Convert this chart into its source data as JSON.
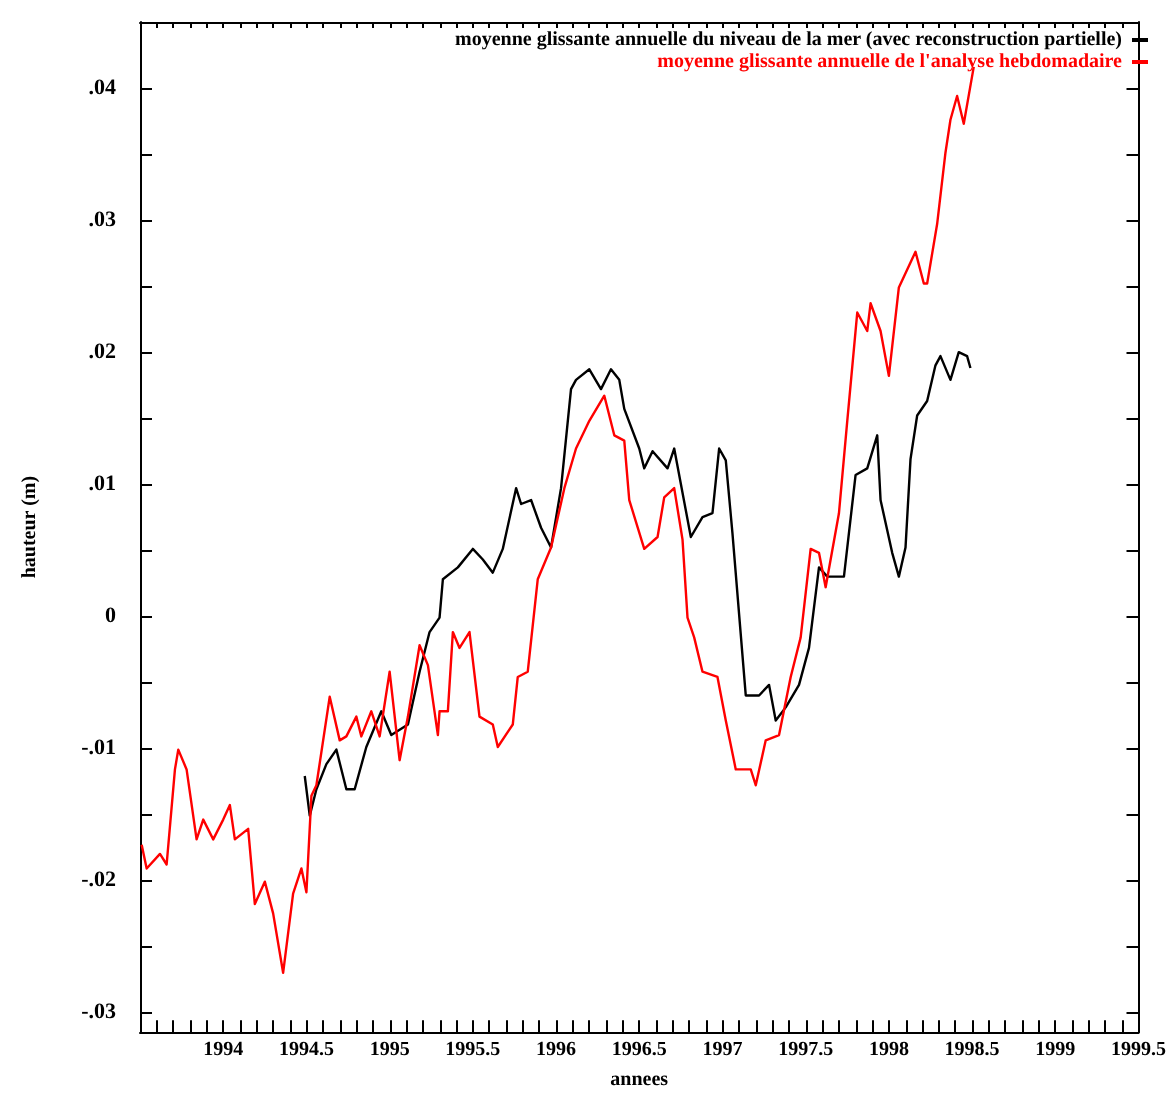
{
  "chart_data": {
    "type": "line",
    "xlabel": "annees",
    "ylabel": "hauteur (m)",
    "legend": "top right",
    "grid": false,
    "marker": "none",
    "line_style": "solid",
    "xlim": [
      1993.5,
      1999.5
    ],
    "ylim": [
      -0.0315,
      0.045
    ],
    "xticks": [
      {
        "value": 1993.6,
        "label": null
      },
      {
        "value": 1993.7,
        "label": null
      },
      {
        "value": 1993.8,
        "label": null
      },
      {
        "value": 1993.9,
        "label": null
      },
      {
        "value": 1994,
        "label": "1994"
      },
      {
        "value": 1994.1,
        "label": null
      },
      {
        "value": 1994.2,
        "label": null
      },
      {
        "value": 1994.3,
        "label": null
      },
      {
        "value": 1994.4,
        "label": null
      },
      {
        "value": 1994.5,
        "label": "1994.5"
      },
      {
        "value": 1994.6,
        "label": null
      },
      {
        "value": 1994.7,
        "label": null
      },
      {
        "value": 1994.8,
        "label": null
      },
      {
        "value": 1994.9,
        "label": null
      },
      {
        "value": 1995,
        "label": "1995"
      },
      {
        "value": 1995.1,
        "label": null
      },
      {
        "value": 1995.2,
        "label": null
      },
      {
        "value": 1995.3,
        "label": null
      },
      {
        "value": 1995.4,
        "label": null
      },
      {
        "value": 1995.5,
        "label": "1995.5"
      },
      {
        "value": 1995.6,
        "label": null
      },
      {
        "value": 1995.7,
        "label": null
      },
      {
        "value": 1995.8,
        "label": null
      },
      {
        "value": 1995.9,
        "label": null
      },
      {
        "value": 1996,
        "label": "1996"
      },
      {
        "value": 1996.1,
        "label": null
      },
      {
        "value": 1996.2,
        "label": null
      },
      {
        "value": 1996.3,
        "label": null
      },
      {
        "value": 1996.4,
        "label": null
      },
      {
        "value": 1996.5,
        "label": "1996.5"
      },
      {
        "value": 1996.6,
        "label": null
      },
      {
        "value": 1996.7,
        "label": null
      },
      {
        "value": 1996.8,
        "label": null
      },
      {
        "value": 1996.9,
        "label": null
      },
      {
        "value": 1997,
        "label": "1997"
      },
      {
        "value": 1997.1,
        "label": null
      },
      {
        "value": 1997.2,
        "label": null
      },
      {
        "value": 1997.3,
        "label": null
      },
      {
        "value": 1997.4,
        "label": null
      },
      {
        "value": 1997.5,
        "label": "1997.5"
      },
      {
        "value": 1997.6,
        "label": null
      },
      {
        "value": 1997.7,
        "label": null
      },
      {
        "value": 1997.8,
        "label": null
      },
      {
        "value": 1997.9,
        "label": null
      },
      {
        "value": 1998,
        "label": "1998"
      },
      {
        "value": 1998.1,
        "label": null
      },
      {
        "value": 1998.2,
        "label": null
      },
      {
        "value": 1998.3,
        "label": null
      },
      {
        "value": 1998.4,
        "label": null
      },
      {
        "value": 1998.5,
        "label": "1998.5"
      },
      {
        "value": 1998.6,
        "label": null
      },
      {
        "value": 1998.7,
        "label": null
      },
      {
        "value": 1998.8,
        "label": null
      },
      {
        "value": 1998.9,
        "label": null
      },
      {
        "value": 1999,
        "label": "1999"
      },
      {
        "value": 1999.1,
        "label": null
      },
      {
        "value": 1999.2,
        "label": null
      },
      {
        "value": 1999.3,
        "label": null
      },
      {
        "value": 1999.4,
        "label": null
      },
      {
        "value": 1999.5,
        "label": "1999.5"
      }
    ],
    "yticks": [
      {
        "value": -0.03,
        "label": "-.03"
      },
      {
        "value": -0.025,
        "label": null
      },
      {
        "value": -0.02,
        "label": "-.02"
      },
      {
        "value": -0.015,
        "label": null
      },
      {
        "value": -0.01,
        "label": "-.01"
      },
      {
        "value": -0.005,
        "label": null
      },
      {
        "value": 0,
        "label": "0"
      },
      {
        "value": 0.005,
        "label": null
      },
      {
        "value": 0.01,
        "label": ".01"
      },
      {
        "value": 0.015,
        "label": null
      },
      {
        "value": 0.02,
        "label": ".02"
      },
      {
        "value": 0.025,
        "label": null
      },
      {
        "value": 0.03,
        "label": ".03"
      },
      {
        "value": 0.035,
        "label": null
      },
      {
        "value": 0.04,
        "label": ".04"
      }
    ],
    "series": [
      {
        "name": "moyenne glissante annuelle du niveau de la mer (avec reconstruction partielle)",
        "color": "#000000",
        "x": [
          1994.49,
          1994.52,
          1994.56,
          1994.62,
          1994.68,
          1994.74,
          1994.79,
          1994.86,
          1994.95,
          1995.01,
          1995.11,
          1995.18,
          1995.24,
          1995.3,
          1995.32,
          1995.41,
          1995.5,
          1995.56,
          1995.62,
          1995.68,
          1995.76,
          1995.79,
          1995.85,
          1995.91,
          1995.97,
          1996.03,
          1996.09,
          1996.12,
          1996.2,
          1996.27,
          1996.33,
          1996.38,
          1996.41,
          1996.5,
          1996.53,
          1996.58,
          1996.67,
          1996.71,
          1996.81,
          1996.88,
          1996.94,
          1996.98,
          1997.02,
          1997.06,
          1997.14,
          1997.22,
          1997.28,
          1997.32,
          1997.38,
          1997.46,
          1997.52,
          1997.58,
          1997.63,
          1997.73,
          1997.8,
          1997.87,
          1997.93,
          1997.95,
          1998.02,
          1998.06,
          1998.1,
          1998.13,
          1998.17,
          1998.23,
          1998.28,
          1998.31,
          1998.37,
          1998.42,
          1998.47,
          1998.49
        ],
        "values": [
          -0.0121,
          -0.0151,
          -0.0131,
          -0.0112,
          -0.0101,
          -0.0131,
          -0.0131,
          -0.0099,
          -0.0072,
          -0.009,
          -0.0082,
          -0.0042,
          -0.0012,
          -0.0001,
          0.0028,
          0.0037,
          0.0051,
          0.0043,
          0.0033,
          0.0051,
          0.0097,
          0.0085,
          0.0088,
          0.0067,
          0.0052,
          0.0097,
          0.0172,
          0.0179,
          0.0187,
          0.0172,
          0.0187,
          0.0179,
          0.0157,
          0.0127,
          0.0112,
          0.0125,
          0.0112,
          0.0127,
          0.006,
          0.0075,
          0.0078,
          0.0127,
          0.0118,
          0.0063,
          -0.006,
          -0.006,
          -0.0052,
          -0.0079,
          -0.0069,
          -0.0052,
          -0.0024,
          0.0037,
          0.003,
          0.003,
          0.0107,
          0.0112,
          0.0137,
          0.0088,
          0.0048,
          0.003,
          0.0052,
          0.0119,
          0.0152,
          0.0163,
          0.019,
          0.0197,
          0.0179,
          0.02,
          0.0197,
          0.0188
        ]
      },
      {
        "name": "moyenne glissante annuelle de l'analyse hebdomadaire",
        "color": "#ff0000",
        "x": [
          1993.51,
          1993.54,
          1993.62,
          1993.66,
          1993.71,
          1993.73,
          1993.78,
          1993.84,
          1993.88,
          1993.94,
          1994.0,
          1994.04,
          1994.07,
          1994.15,
          1994.19,
          1994.25,
          1994.3,
          1994.36,
          1994.42,
          1994.47,
          1994.5,
          1994.53,
          1994.56,
          1994.64,
          1994.7,
          1994.74,
          1994.8,
          1994.83,
          1994.89,
          1994.94,
          1995.0,
          1995.06,
          1995.11,
          1995.18,
          1995.23,
          1995.29,
          1995.3,
          1995.35,
          1995.38,
          1995.42,
          1995.48,
          1995.54,
          1995.62,
          1995.65,
          1995.74,
          1995.77,
          1995.83,
          1995.89,
          1995.97,
          1996.05,
          1996.12,
          1996.2,
          1996.29,
          1996.35,
          1996.41,
          1996.44,
          1996.53,
          1996.61,
          1996.65,
          1996.71,
          1996.76,
          1996.79,
          1996.83,
          1996.88,
          1996.97,
          1997.02,
          1997.08,
          1997.17,
          1997.2,
          1997.26,
          1997.34,
          1997.41,
          1997.47,
          1997.53,
          1997.58,
          1997.62,
          1997.7,
          1997.75,
          1997.81,
          1997.87,
          1997.89,
          1997.95,
          1998.0,
          1998.06,
          1998.16,
          1998.21,
          1998.23,
          1998.29,
          1998.34,
          1998.37,
          1998.41,
          1998.45,
          1998.51
        ],
        "values": [
          -0.0173,
          -0.0191,
          -0.018,
          -0.0188,
          -0.0116,
          -0.0101,
          -0.0116,
          -0.0169,
          -0.0154,
          -0.0169,
          -0.0154,
          -0.0143,
          -0.0169,
          -0.0161,
          -0.0218,
          -0.0201,
          -0.0225,
          -0.027,
          -0.021,
          -0.0191,
          -0.0209,
          -0.0136,
          -0.0128,
          -0.0061,
          -0.0094,
          -0.0091,
          -0.0076,
          -0.0091,
          -0.0072,
          -0.0091,
          -0.0042,
          -0.0109,
          -0.0076,
          -0.0022,
          -0.0037,
          -0.009,
          -0.0072,
          -0.0072,
          -0.0012,
          -0.0024,
          -0.0012,
          -0.0076,
          -0.0082,
          -0.0099,
          -0.0082,
          -0.0046,
          -0.0042,
          0.0028,
          0.0052,
          0.0097,
          0.0127,
          0.0148,
          0.0167,
          0.0137,
          0.0133,
          0.0088,
          0.0051,
          0.006,
          0.009,
          0.0097,
          0.0058,
          -0.0001,
          -0.0016,
          -0.0042,
          -0.0046,
          -0.0079,
          -0.0116,
          -0.0116,
          -0.0128,
          -0.0094,
          -0.009,
          -0.0046,
          -0.0016,
          0.0051,
          0.0048,
          0.0022,
          0.0078,
          0.0148,
          0.023,
          0.0216,
          0.0237,
          0.0216,
          0.0182,
          0.0249,
          0.0276,
          0.0252,
          0.0252,
          0.0297,
          0.0351,
          0.0376,
          0.0394,
          0.0373,
          0.0416
        ]
      }
    ]
  }
}
